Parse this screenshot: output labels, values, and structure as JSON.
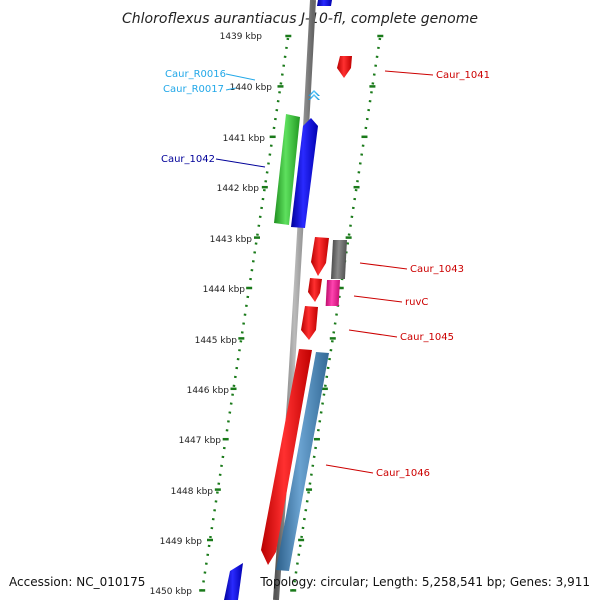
{
  "title": "Chloroflexus aurantiacus J-10-fl, complete genome",
  "footer": {
    "accession": "Accession: NC_010175",
    "summary": "Topology: circular; Length: 5,258,541 bp; Genes: 3,911"
  },
  "ticks": [
    "1439 kbp",
    "1440 kbp",
    "1441 kbp",
    "1442 kbp",
    "1443 kbp",
    "1444 kbp",
    "1445 kbp",
    "1446 kbp",
    "1447 kbp",
    "1448 kbp",
    "1449 kbp",
    "1450 kbp"
  ],
  "gene_labels": {
    "caur_r0016": "Caur_R0016",
    "caur_r0017": "Caur_R0017",
    "caur_1042": "Caur_1042",
    "caur_1041": "Caur_1041",
    "caur_1043": "Caur_1043",
    "ruvc": "ruvC",
    "caur_1045": "Caur_1045",
    "caur_1046": "Caur_1046"
  },
  "colors": {
    "backbone": "#888888",
    "tick": "#1a7a1a",
    "cds_red": "#ff1111",
    "cds_blue": "#1111ee",
    "rrna_green": "#33cc33",
    "trna_cyan": "#22a8e8",
    "gray_gene": "#707070",
    "pink_gene": "#ee2299",
    "steelblue_gene": "#4682b4",
    "label_red": "#cc0000",
    "label_blue": "#000099",
    "label_cyan": "#22a8e8"
  }
}
